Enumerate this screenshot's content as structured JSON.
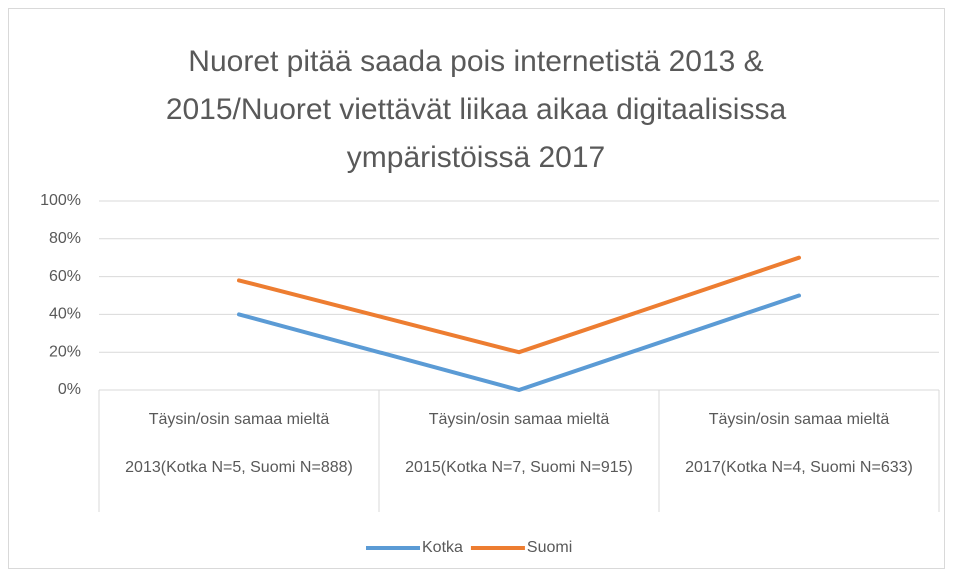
{
  "chart_data": {
    "type": "line",
    "title": "Nuoret pitää saada pois internetistä 2013 &\n2015/Nuoret viettävät liikaa aikaa digitaalisissa\nympäristöissä 2017",
    "categories": [
      "Täysin/osin samaa mieltä\n\n2013(Kotka N=5, Suomi N=888)",
      "Täysin/osin samaa mieltä\n\n2015(Kotka N=7, Suomi N=915)",
      "Täysin/osin samaa mieltä\n\n2017(Kotka N=4, Suomi N=633)"
    ],
    "series": [
      {
        "name": "Kotka",
        "color": "#5b9bd5",
        "values": [
          40,
          0,
          50
        ]
      },
      {
        "name": "Suomi",
        "color": "#ed7d31",
        "values": [
          58,
          20,
          70
        ]
      }
    ],
    "ylim": [
      0,
      100
    ],
    "yticks": [
      {
        "value": 0,
        "label": "0%"
      },
      {
        "value": 20,
        "label": "20%"
      },
      {
        "value": 40,
        "label": "40%"
      },
      {
        "value": 60,
        "label": "60%"
      },
      {
        "value": 80,
        "label": "80%"
      },
      {
        "value": 100,
        "label": "100%"
      }
    ],
    "grid": true,
    "legend": "bottom"
  }
}
